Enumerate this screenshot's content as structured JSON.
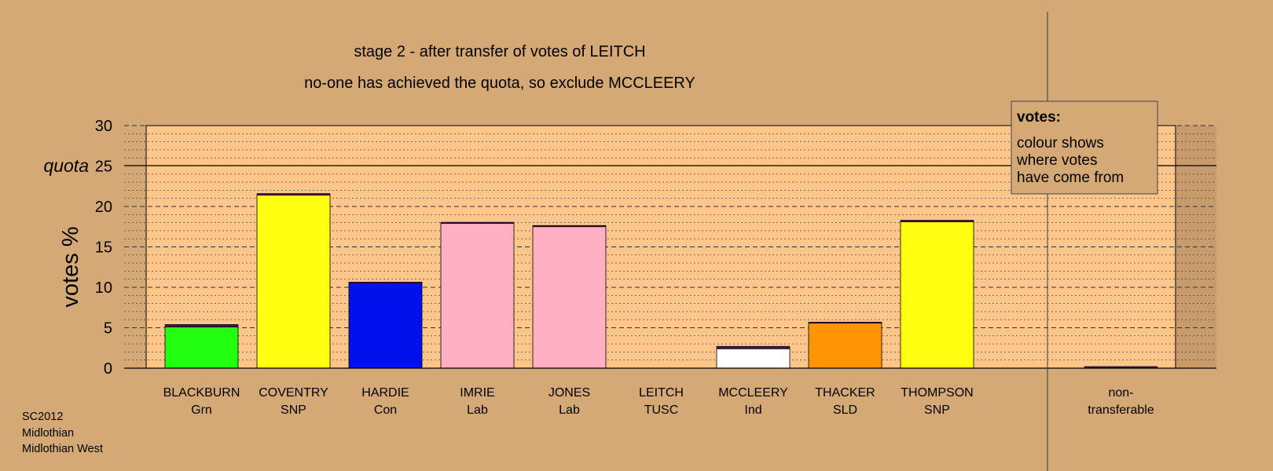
{
  "chart_data": {
    "type": "bar",
    "title": "stage 2 - after transfer of votes of LEITCH",
    "subtitle": "no-one has achieved the quota, so exclude MCCLEERY",
    "ylabel": "votes %",
    "ylim": [
      0,
      30
    ],
    "yticks": [
      0,
      5,
      10,
      15,
      20,
      25,
      30
    ],
    "quota": {
      "label": "quota",
      "value": 25
    },
    "grid": true,
    "categories": [
      {
        "name": "BLACKBURN",
        "party": "Grn"
      },
      {
        "name": "COVENTRY",
        "party": "SNP"
      },
      {
        "name": "HARDIE",
        "party": "Con"
      },
      {
        "name": "IMRIE",
        "party": "Lab"
      },
      {
        "name": "JONES",
        "party": "Lab"
      },
      {
        "name": "LEITCH",
        "party": "TUSC"
      },
      {
        "name": "MCCLEERY",
        "party": "Ind"
      },
      {
        "name": "THACKER",
        "party": "SLD"
      },
      {
        "name": "THOMPSON",
        "party": "SNP"
      }
    ],
    "bars": [
      {
        "base_value": 5.1,
        "base_color": "#22ff11",
        "transfer_value": 0.3
      },
      {
        "base_value": 21.4,
        "base_color": "#ffff11",
        "transfer_value": 0.2
      },
      {
        "base_value": 10.6,
        "base_color": "#0011ee",
        "transfer_value": 0.05
      },
      {
        "base_value": 17.9,
        "base_color": "#ffb0c2",
        "transfer_value": 0.15
      },
      {
        "base_value": 17.5,
        "base_color": "#ffb0c2",
        "transfer_value": 0.15
      },
      {
        "base_value": 0.0,
        "base_color": "#8b1a4a",
        "transfer_value": 0.0
      },
      {
        "base_value": 2.4,
        "base_color": "#ffffff",
        "transfer_value": 0.3
      },
      {
        "base_value": 5.6,
        "base_color": "#ff9505",
        "transfer_value": 0.1
      },
      {
        "base_value": 18.1,
        "base_color": "#ffff11",
        "transfer_value": 0.2
      }
    ],
    "nontransferable": {
      "label_line1": "non-",
      "label_line2": "transferable",
      "value": 0.2
    },
    "transfer_color": "#4a1050",
    "legend": {
      "title": "votes:",
      "lines": [
        "colour shows",
        "where votes",
        "have come from"
      ],
      "placement": "top-right"
    }
  },
  "footer": {
    "line1": "SC2012",
    "line2": "Midlothian",
    "line3": "Midlothian West"
  },
  "colors": {
    "background": "#d4a976",
    "plot_area": "#ffc68c",
    "nontransferable_area": "#c89b6d"
  }
}
